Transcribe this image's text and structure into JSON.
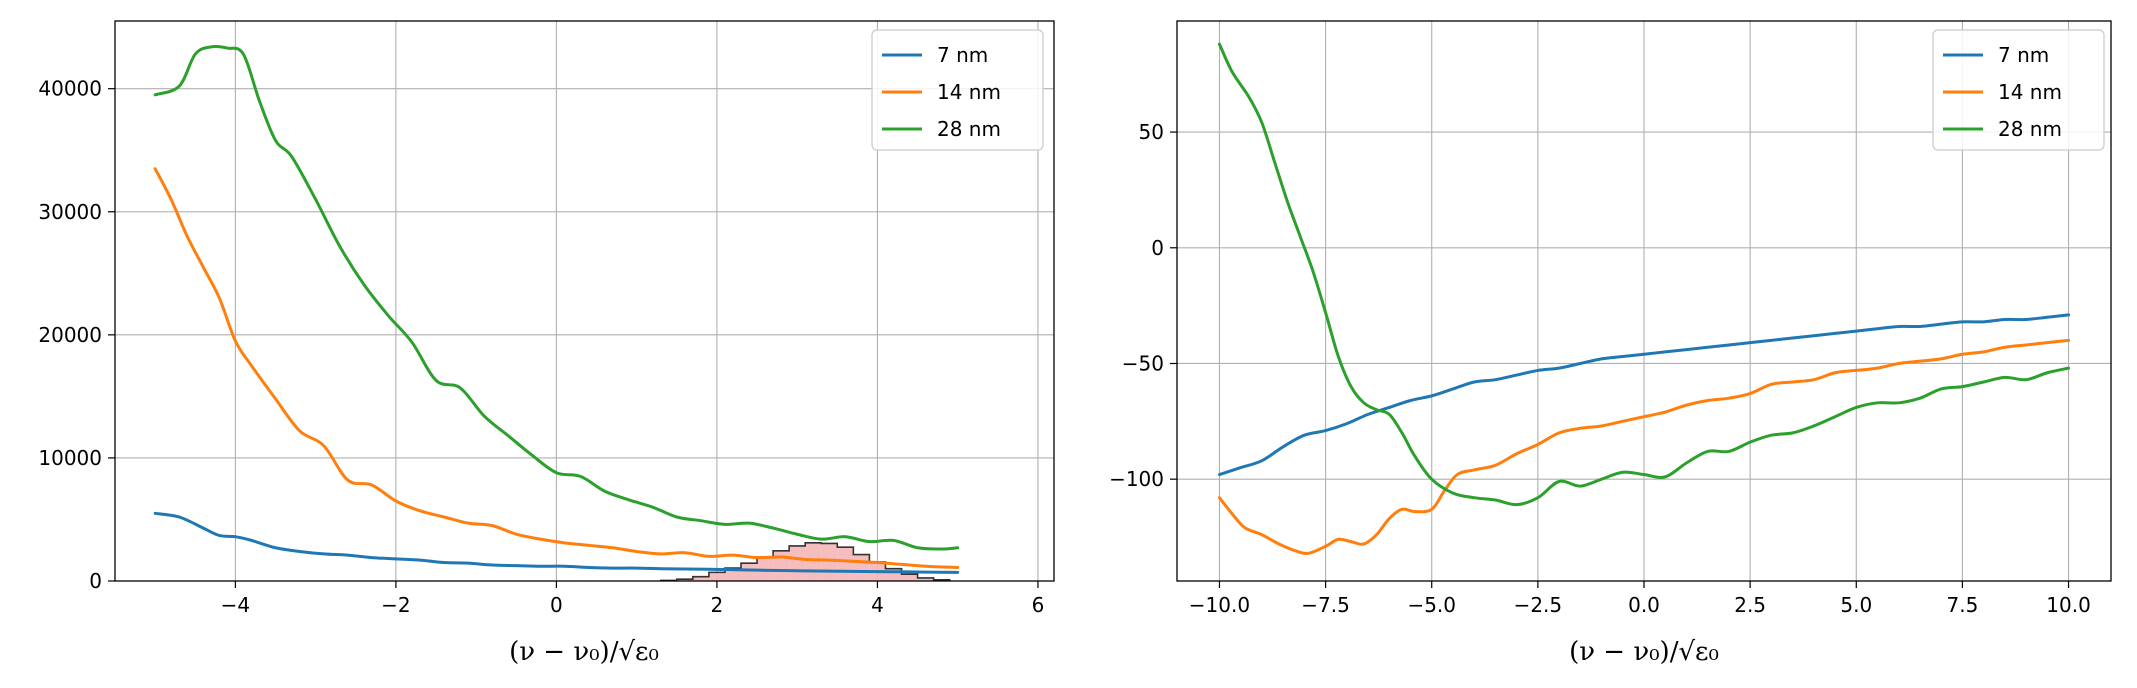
{
  "chart_data": [
    {
      "type": "line",
      "xlabel": "(ν − ν₀)/√ε₀",
      "ylabel": "",
      "xlim": [
        -5.5,
        6.2
      ],
      "ylim": [
        0,
        45500
      ],
      "xticks": [
        -4,
        -2,
        0,
        2,
        4,
        6
      ],
      "xtick_labels": [
        "−4",
        "−2",
        "0",
        "2",
        "4",
        "6"
      ],
      "yticks": [
        0,
        10000,
        20000,
        30000,
        40000
      ],
      "ytick_labels": [
        "0",
        "10000",
        "20000",
        "30000",
        "40000"
      ],
      "grid": true,
      "legend_position": "upper right",
      "series": [
        {
          "name": "7 nm",
          "color": "#1f77b4",
          "x": [
            -5.0,
            -4.7,
            -4.4,
            -4.2,
            -4.0,
            -3.8,
            -3.5,
            -3.2,
            -2.9,
            -2.6,
            -2.3,
            -2.0,
            -1.7,
            -1.4,
            -1.1,
            -0.8,
            -0.5,
            -0.2,
            0.1,
            0.4,
            0.7,
            1.0,
            1.3,
            1.6,
            1.9,
            2.2,
            2.5,
            2.8,
            3.1,
            3.4,
            3.7,
            4.0,
            4.3,
            4.6,
            5.0
          ],
          "y": [
            5500,
            5200,
            4300,
            3700,
            3600,
            3300,
            2700,
            2400,
            2200,
            2100,
            1900,
            1800,
            1700,
            1500,
            1450,
            1300,
            1250,
            1200,
            1200,
            1100,
            1050,
            1050,
            1000,
            980,
            950,
            920,
            880,
            850,
            820,
            800,
            780,
            760,
            750,
            720,
            700
          ]
        },
        {
          "name": "14 nm",
          "color": "#ff7f0e",
          "x": [
            -5.0,
            -4.8,
            -4.6,
            -4.4,
            -4.2,
            -4.0,
            -3.8,
            -3.5,
            -3.2,
            -2.9,
            -2.6,
            -2.3,
            -2.0,
            -1.7,
            -1.4,
            -1.1,
            -0.8,
            -0.5,
            -0.2,
            0.1,
            0.4,
            0.7,
            1.0,
            1.3,
            1.6,
            1.9,
            2.2,
            2.5,
            2.8,
            3.1,
            3.4,
            3.7,
            4.0,
            4.3,
            4.6,
            5.0
          ],
          "y": [
            33500,
            31000,
            28000,
            25500,
            23000,
            19500,
            17500,
            14800,
            12200,
            11000,
            8200,
            7800,
            6500,
            5700,
            5200,
            4700,
            4500,
            3800,
            3400,
            3100,
            2900,
            2700,
            2400,
            2200,
            2300,
            2000,
            2100,
            1900,
            1950,
            1750,
            1700,
            1600,
            1500,
            1350,
            1200,
            1100
          ]
        },
        {
          "name": "28 nm",
          "color": "#2ca02c",
          "x": [
            -5.0,
            -4.7,
            -4.5,
            -4.3,
            -4.1,
            -3.9,
            -3.7,
            -3.5,
            -3.3,
            -3.0,
            -2.7,
            -2.4,
            -2.1,
            -1.8,
            -1.5,
            -1.2,
            -0.9,
            -0.6,
            -0.3,
            0.0,
            0.3,
            0.6,
            0.9,
            1.2,
            1.5,
            1.8,
            2.1,
            2.4,
            2.7,
            3.0,
            3.3,
            3.6,
            3.9,
            4.2,
            4.5,
            4.8,
            5.0
          ],
          "y": [
            39500,
            40200,
            42800,
            43400,
            43300,
            42800,
            39000,
            35800,
            34500,
            31000,
            27200,
            24100,
            21600,
            19400,
            16300,
            15700,
            13400,
            11800,
            10200,
            8800,
            8500,
            7300,
            6600,
            6000,
            5200,
            4900,
            4600,
            4700,
            4300,
            3800,
            3400,
            3600,
            3200,
            3300,
            2700,
            2600,
            2700
          ]
        }
      ],
      "histogram": {
        "color": "#f4b6b6",
        "edge_color": "#333333",
        "bin_edges": [
          1.3,
          1.5,
          1.7,
          1.9,
          2.1,
          2.3,
          2.5,
          2.7,
          2.9,
          3.1,
          3.3,
          3.5,
          3.7,
          3.9,
          4.1,
          4.3,
          4.5,
          4.7,
          4.9
        ],
        "heights": [
          50,
          150,
          350,
          700,
          1050,
          1450,
          1950,
          2450,
          2850,
          3100,
          3050,
          2750,
          2150,
          1550,
          1000,
          550,
          250,
          100
        ]
      }
    },
    {
      "type": "line",
      "xlabel": "(ν − ν₀)/√ε₀",
      "ylabel": "",
      "xlim": [
        -11.0,
        11.0
      ],
      "ylim": [
        -144,
        98
      ],
      "xticks": [
        -10.0,
        -7.5,
        -5.0,
        -2.5,
        0.0,
        2.5,
        5.0,
        7.5,
        10.0
      ],
      "xtick_labels": [
        "−10.0",
        "−7.5",
        "−5.0",
        "−2.5",
        "0.0",
        "2.5",
        "5.0",
        "7.5",
        "10.0"
      ],
      "yticks": [
        -100,
        -50,
        0,
        50
      ],
      "ytick_labels": [
        "−100",
        "−50",
        "0",
        "50"
      ],
      "grid": true,
      "legend_position": "upper right",
      "series": [
        {
          "name": "7 nm",
          "color": "#1f77b4",
          "x": [
            -10.0,
            -9.5,
            -9.0,
            -8.5,
            -8.0,
            -7.5,
            -7.0,
            -6.5,
            -6.0,
            -5.5,
            -5.0,
            -4.5,
            -4.0,
            -3.5,
            -3.0,
            -2.5,
            -2.0,
            -1.5,
            -1.0,
            -0.5,
            0.0,
            0.5,
            1.0,
            1.5,
            2.0,
            2.5,
            3.0,
            3.5,
            4.0,
            4.5,
            5.0,
            5.5,
            6.0,
            6.5,
            7.0,
            7.5,
            8.0,
            8.5,
            9.0,
            9.5,
            10.0
          ],
          "y": [
            -98,
            -95,
            -92,
            -86,
            -81,
            -79,
            -76,
            -72,
            -69,
            -66,
            -64,
            -61,
            -58,
            -57,
            -55,
            -53,
            -52,
            -50,
            -48,
            -47,
            -46,
            -45,
            -44,
            -43,
            -42,
            -41,
            -40,
            -39,
            -38,
            -37,
            -36,
            -35,
            -34,
            -34,
            -33,
            -32,
            -32,
            -31,
            -31,
            -30,
            -29
          ]
        },
        {
          "name": "14 nm",
          "color": "#ff7f0e",
          "x": [
            -10.0,
            -9.7,
            -9.4,
            -9.0,
            -8.6,
            -8.2,
            -7.9,
            -7.5,
            -7.2,
            -6.9,
            -6.6,
            -6.3,
            -6.0,
            -5.7,
            -5.4,
            -5.0,
            -4.7,
            -4.4,
            -4.0,
            -3.5,
            -3.0,
            -2.5,
            -2.0,
            -1.5,
            -1.0,
            -0.5,
            0.0,
            0.5,
            1.0,
            1.5,
            2.0,
            2.5,
            3.0,
            3.5,
            4.0,
            4.5,
            5.0,
            5.5,
            6.0,
            6.5,
            7.0,
            7.5,
            8.0,
            8.5,
            9.0,
            9.5,
            10.0
          ],
          "y": [
            -108,
            -115,
            -121,
            -124,
            -128,
            -131,
            -132,
            -129,
            -126,
            -127,
            -128,
            -124,
            -117,
            -113,
            -114,
            -113,
            -105,
            -98,
            -96,
            -94,
            -89,
            -85,
            -80,
            -78,
            -77,
            -75,
            -73,
            -71,
            -68,
            -66,
            -65,
            -63,
            -59,
            -58,
            -57,
            -54,
            -53,
            -52,
            -50,
            -49,
            -48,
            -46,
            -45,
            -43,
            -42,
            -41,
            -40
          ]
        },
        {
          "name": "28 nm",
          "color": "#2ca02c",
          "x": [
            -10.0,
            -9.7,
            -9.3,
            -9.0,
            -8.7,
            -8.4,
            -8.1,
            -7.8,
            -7.5,
            -7.2,
            -6.9,
            -6.6,
            -6.3,
            -6.0,
            -5.7,
            -5.4,
            -5.0,
            -4.5,
            -4.0,
            -3.5,
            -3.0,
            -2.5,
            -2.0,
            -1.5,
            -1.0,
            -0.5,
            0.0,
            0.5,
            1.0,
            1.5,
            2.0,
            2.5,
            3.0,
            3.5,
            4.0,
            4.5,
            5.0,
            5.5,
            6.0,
            6.5,
            7.0,
            7.5,
            8.0,
            8.5,
            9.0,
            9.5,
            10.0
          ],
          "y": [
            88,
            76,
            65,
            54,
            37,
            20,
            5,
            -10,
            -28,
            -47,
            -60,
            -67,
            -70,
            -72,
            -80,
            -90,
            -100,
            -106,
            -108,
            -109,
            -111,
            -108,
            -101,
            -103,
            -100,
            -97,
            -98,
            -99,
            -93,
            -88,
            -88,
            -84,
            -81,
            -80,
            -77,
            -73,
            -69,
            -67,
            -67,
            -65,
            -61,
            -60,
            -58,
            -56,
            -57,
            -54,
            -52
          ]
        }
      ]
    }
  ]
}
